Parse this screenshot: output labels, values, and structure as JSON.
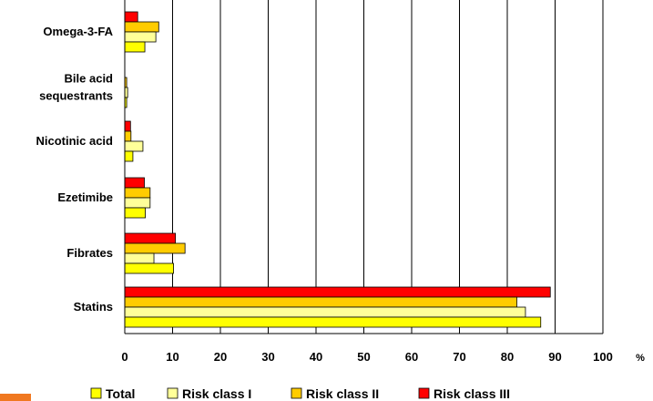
{
  "chart_data": {
    "type": "bar",
    "orientation": "horizontal",
    "categories": [
      "Omega-3-FA",
      "Bile acid|sequestrants",
      "Nicotinic acid",
      "Ezetimibe",
      "Fibrates",
      "Statins"
    ],
    "series": [
      {
        "name": "Total",
        "color": "#ffff00",
        "values": [
          4.2,
          0.4,
          1.7,
          4.3,
          10.2,
          87.0
        ]
      },
      {
        "name": "Risk class I",
        "color": "#ffff99",
        "values": [
          6.5,
          0.6,
          3.8,
          5.3,
          6.1,
          83.8
        ]
      },
      {
        "name": "Risk class II",
        "color": "#ffcc00",
        "values": [
          7.1,
          0.4,
          1.3,
          5.3,
          12.6,
          82.0
        ]
      },
      {
        "name": "Risk class III",
        "color": "#ff0000",
        "values": [
          2.7,
          0.0,
          1.2,
          4.1,
          10.6,
          89.0
        ]
      }
    ],
    "x_ticks": [
      "0",
      "10",
      "20",
      "30",
      "40",
      "50",
      "60",
      "70",
      "80",
      "90",
      "100"
    ],
    "x_unit": "%",
    "xlim": [
      0,
      100
    ],
    "grid": "vertical",
    "legend": "bottom"
  },
  "decor": {
    "accent_color": "#f07820"
  }
}
